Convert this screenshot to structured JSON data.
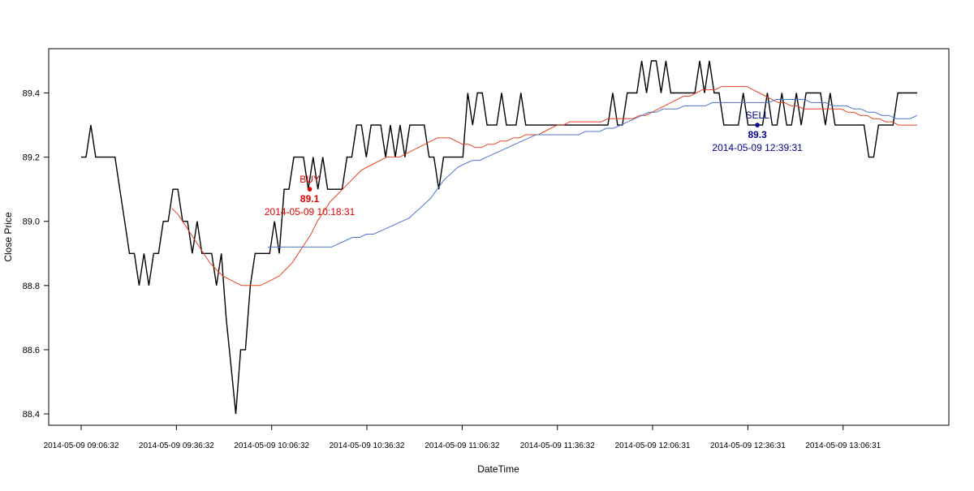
{
  "chart_data": {
    "type": "line",
    "title": "",
    "xlabel": "DateTime",
    "ylabel": "Close Price",
    "ylim": [
      88.4,
      89.5
    ],
    "yticks": [
      "88.4",
      "88.6",
      "88.8",
      "89.0",
      "89.2",
      "89.4"
    ],
    "xticks": [
      "2014-05-09 09:06:32",
      "2014-05-09 09:36:32",
      "2014-05-09 10:06:32",
      "2014-05-09 10:36:32",
      "2014-05-09 11:06:32",
      "2014-05-09 11:36:32",
      "2014-05-09 12:06:31",
      "2014-05-09 12:36:31",
      "2014-05-09 13:06:31"
    ],
    "x_range": [
      "2014-05-09 09:06:32",
      "2014-05-09 13:29:00"
    ],
    "series": [
      {
        "color": "#000000",
        "values": [
          89.2,
          89.2,
          89.3,
          89.2,
          89.2,
          89.2,
          89.2,
          89.2,
          89.1,
          89.0,
          88.9,
          88.9,
          88.8,
          88.9,
          88.8,
          88.9,
          88.9,
          89.0,
          89.0,
          89.1,
          89.1,
          89.0,
          89.0,
          88.9,
          89.0,
          88.9,
          88.9,
          88.9,
          88.8,
          88.9,
          88.7,
          88.55,
          88.4,
          88.6,
          88.6,
          88.8,
          88.9,
          88.9,
          88.9,
          88.9,
          89.0,
          88.9,
          89.1,
          89.1,
          89.2,
          89.2,
          89.2,
          89.1,
          89.2,
          89.1,
          89.2,
          89.1,
          89.1,
          89.1,
          89.1,
          89.2,
          89.2,
          89.3,
          89.3,
          89.2,
          89.3,
          89.3,
          89.3,
          89.2,
          89.3,
          89.2,
          89.3,
          89.2,
          89.3,
          89.3,
          89.3,
          89.3,
          89.2,
          89.2,
          89.1,
          89.2,
          89.2,
          89.2,
          89.2,
          89.2,
          89.4,
          89.3,
          89.4,
          89.4,
          89.3,
          89.3,
          89.3,
          89.4,
          89.3,
          89.3,
          89.3,
          89.4,
          89.3,
          89.3,
          89.3,
          89.3,
          89.3,
          89.3,
          89.3,
          89.3,
          89.3,
          89.3,
          89.3,
          89.3,
          89.3,
          89.3,
          89.3,
          89.3,
          89.3,
          89.3,
          89.4,
          89.3,
          89.3,
          89.4,
          89.4,
          89.4,
          89.5,
          89.4,
          89.5,
          89.5,
          89.4,
          89.5,
          89.4,
          89.4,
          89.4,
          89.4,
          89.4,
          89.4,
          89.5,
          89.4,
          89.5,
          89.4,
          89.4,
          89.3,
          89.3,
          89.3,
          89.3,
          89.4,
          89.3,
          89.3,
          89.3,
          89.3,
          89.4,
          89.3,
          89.3,
          89.4,
          89.3,
          89.3,
          89.4,
          89.3,
          89.4,
          89.4,
          89.4,
          89.4,
          89.3,
          89.4,
          89.3,
          89.3,
          89.3,
          89.3,
          89.3,
          89.3,
          89.3,
          89.2,
          89.2,
          89.3,
          89.3,
          89.3,
          89.3,
          89.4,
          89.4,
          89.4,
          89.4,
          89.4
        ]
      },
      {
        "color": "#e8431f",
        "values": [
          89.04,
          89.02,
          88.99,
          88.96,
          88.93,
          88.9,
          88.87,
          88.85,
          88.83,
          88.82,
          88.81,
          88.8,
          88.8,
          88.8,
          88.8,
          88.81,
          88.82,
          88.83,
          88.85,
          88.87,
          88.9,
          88.93,
          88.96,
          89.0,
          89.03,
          89.06,
          89.08,
          89.1,
          89.12,
          89.14,
          89.16,
          89.17,
          89.18,
          89.19,
          89.2,
          89.2,
          89.2,
          89.21,
          89.22,
          89.23,
          89.24,
          89.25,
          89.26,
          89.26,
          89.26,
          89.25,
          89.24,
          89.24,
          89.23,
          89.23,
          89.24,
          89.24,
          89.25,
          89.25,
          89.26,
          89.26,
          89.27,
          89.27,
          89.27,
          89.28,
          89.29,
          89.3,
          89.3,
          89.31,
          89.31,
          89.31,
          89.31,
          89.31,
          89.31,
          89.32,
          89.32,
          89.32,
          89.32,
          89.32,
          89.33,
          89.33,
          89.34,
          89.35,
          89.36,
          89.37,
          89.38,
          89.39,
          89.39,
          89.4,
          89.41,
          89.41,
          89.41,
          89.42,
          89.42,
          89.42,
          89.42,
          89.42,
          89.41,
          89.4,
          89.39,
          89.38,
          89.37,
          89.37,
          89.36,
          89.36,
          89.35,
          89.35,
          89.35,
          89.35,
          89.35,
          89.35,
          89.35,
          89.34,
          89.34,
          89.33,
          89.33,
          89.32,
          89.32,
          89.31,
          89.31,
          89.3,
          89.3,
          89.3,
          89.3
        ]
      },
      {
        "color": "#4c74d0",
        "values": [
          88.92,
          88.92,
          88.92,
          88.92,
          88.92,
          88.92,
          88.92,
          88.92,
          88.92,
          88.92,
          88.93,
          88.94,
          88.95,
          88.95,
          88.96,
          88.96,
          88.97,
          88.98,
          88.99,
          89.0,
          89.01,
          89.03,
          89.05,
          89.07,
          89.1,
          89.13,
          89.15,
          89.17,
          89.18,
          89.19,
          89.19,
          89.2,
          89.21,
          89.22,
          89.23,
          89.24,
          89.25,
          89.26,
          89.27,
          89.27,
          89.27,
          89.27,
          89.27,
          89.27,
          89.27,
          89.28,
          89.28,
          89.28,
          89.29,
          89.29,
          89.3,
          89.31,
          89.32,
          89.33,
          89.34,
          89.34,
          89.35,
          89.35,
          89.35,
          89.36,
          89.36,
          89.36,
          89.36,
          89.37,
          89.37,
          89.37,
          89.37,
          89.37,
          89.37,
          89.37,
          89.37,
          89.37,
          89.38,
          89.38,
          89.38,
          89.38,
          89.38,
          89.37,
          89.37,
          89.37,
          89.36,
          89.36,
          89.36,
          89.35,
          89.35,
          89.34,
          89.34,
          89.33,
          89.33,
          89.32,
          89.32,
          89.32,
          89.33
        ]
      }
    ],
    "annotations": [
      {
        "label": "BUY",
        "price": "89.1",
        "time": "2014-05-09 10:18:31",
        "x": "2014-05-09 10:18:31",
        "y": 89.1,
        "color": "#e00000"
      },
      {
        "label": "SELL",
        "price": "89.3",
        "time": "2014-05-09 12:39:31",
        "x": "2014-05-09 12:39:31",
        "y": 89.3,
        "color": "#00008b"
      }
    ],
    "grid": false,
    "legend": "none"
  }
}
